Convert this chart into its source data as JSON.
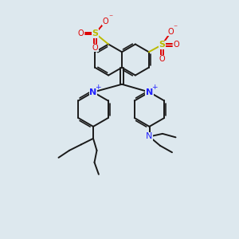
{
  "bg_color": "#dde8ee",
  "bond_color": "#1a1a1a",
  "n_color": "#2222ff",
  "s_color": "#bbbb00",
  "o_color": "#dd0000",
  "bond_width": 1.4,
  "fig_width": 3.0,
  "fig_height": 3.0,
  "dpi": 100,
  "xlim": [
    0,
    10
  ],
  "ylim": [
    0,
    10
  ]
}
